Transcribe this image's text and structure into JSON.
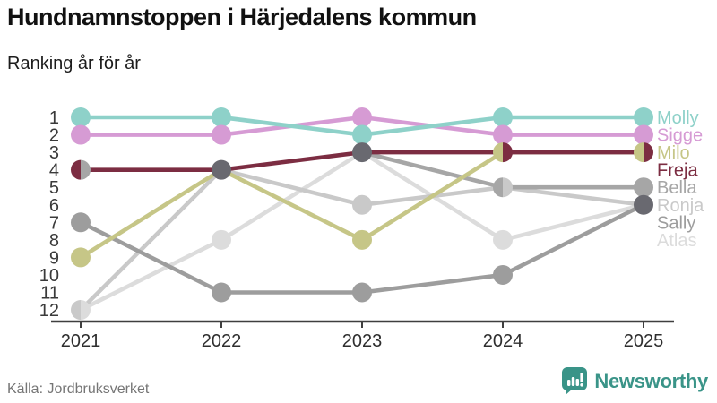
{
  "header": {
    "title": "Hundnamnstoppen i Härjedalens kommun",
    "subtitle": "Ranking år för år"
  },
  "footer": {
    "source": "Källa: Jordbruksverket",
    "brand": "Newsworthy"
  },
  "colors": {
    "axis": "#3f3f3f",
    "tick_label": "#2e2e2e",
    "rank_label": "#3a3a3a",
    "tie_dot": "#696970",
    "brand_teal": "#3a9488"
  },
  "chart_data": {
    "type": "line",
    "subtype": "bump-ranking",
    "title": "Hundnamnstoppen i Härjedalens kommun",
    "subtitle_text": "Ranking år för år",
    "x": [
      2021,
      2022,
      2023,
      2024,
      2025
    ],
    "x_tick_labels": [
      "2021",
      "2022",
      "2023",
      "2024",
      "2025"
    ],
    "y_tick_labels": [
      "1",
      "2",
      "3",
      "4",
      "5",
      "6",
      "7",
      "8",
      "9",
      "10",
      "11",
      "12"
    ],
    "ylim": [
      1,
      12
    ],
    "y_inverted": true,
    "grid": false,
    "legend_position": "right",
    "series": [
      {
        "name": "Molly",
        "color": "#8ed1c9",
        "ranks": [
          1,
          1,
          2,
          1,
          1
        ]
      },
      {
        "name": "Sigge",
        "color": "#d69bd4",
        "ranks": [
          2,
          2,
          1,
          2,
          2
        ]
      },
      {
        "name": "Milo",
        "color": "#c6c687",
        "ranks": [
          9,
          4,
          8,
          3,
          3
        ]
      },
      {
        "name": "Freja",
        "color": "#7c2d42",
        "ranks": [
          4,
          4,
          3,
          3,
          3
        ]
      },
      {
        "name": "Bella",
        "color": "#a6a6a6",
        "ranks": [
          4,
          null,
          3,
          5,
          5
        ]
      },
      {
        "name": "Ronja",
        "color": "#c9c9c9",
        "ranks": [
          12,
          4,
          6,
          5,
          6
        ]
      },
      {
        "name": "Sally",
        "color": "#9d9d9d",
        "ranks": [
          7,
          11,
          11,
          10,
          6
        ]
      },
      {
        "name": "Atlas",
        "color": "#dcdcdc",
        "ranks": [
          12,
          8,
          3,
          8,
          6
        ]
      }
    ],
    "z_order": [
      "Atlas",
      "Ronja",
      "Sally",
      "Bella",
      "Milo",
      "Freja",
      "Sigge",
      "Molly"
    ],
    "notes": "Ties of two names are drawn as split half-circles; ties of three or more as a solid dark dot."
  }
}
